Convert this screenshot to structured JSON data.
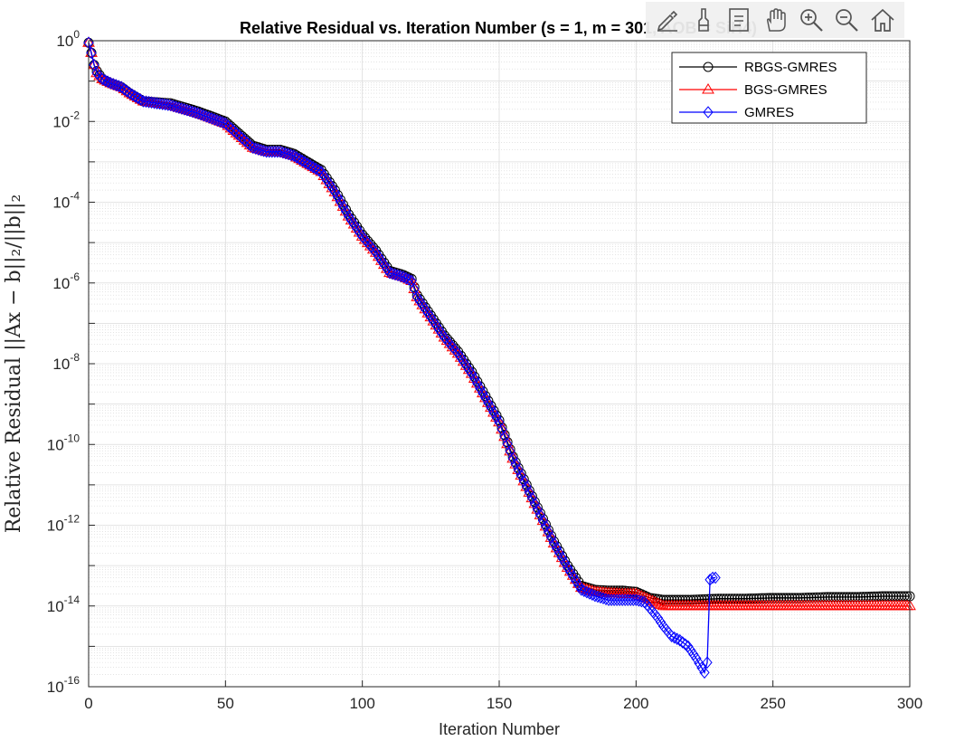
{
  "toolbar": {
    "icons": [
      "edit-icon",
      "brush-icon",
      "datatip-icon",
      "pan-icon",
      "zoom-in-icon",
      "zoom-out-icon",
      "home-icon"
    ]
  },
  "chart_data": {
    "type": "line",
    "title": "Relative Residual vs. Iteration Number (s = 1, m = 301, AOB = SiH4)",
    "xlabel": "Iteration Number",
    "ylabel": "Relative Residual ||Ax − b||₂/||b||₂",
    "yscale": "log",
    "xlim": [
      0,
      300
    ],
    "ylim_exp": [
      -16,
      0
    ],
    "grid": true,
    "minor_grid": true,
    "legend_position": "top-right",
    "xticks": [
      "0",
      "50",
      "100",
      "150",
      "200",
      "250",
      "300"
    ],
    "yticks": [
      {
        "base": "10",
        "exp": "0"
      },
      {
        "base": "10",
        "exp": "-2"
      },
      {
        "base": "10",
        "exp": "-4"
      },
      {
        "base": "10",
        "exp": "-6"
      },
      {
        "base": "10",
        "exp": "-8"
      },
      {
        "base": "10",
        "exp": "-10"
      },
      {
        "base": "10",
        "exp": "-12"
      },
      {
        "base": "10",
        "exp": "-14"
      },
      {
        "base": "10",
        "exp": "-16"
      }
    ],
    "series": [
      {
        "name": "RBGS-GMRES",
        "color": "#000000",
        "marker": "circle",
        "points": [
          [
            0,
            -0.05
          ],
          [
            1,
            -0.3
          ],
          [
            2,
            -0.6
          ],
          [
            3,
            -0.75
          ],
          [
            5,
            -0.95
          ],
          [
            8,
            -1.05
          ],
          [
            12,
            -1.15
          ],
          [
            15,
            -1.3
          ],
          [
            20,
            -1.5
          ],
          [
            30,
            -1.55
          ],
          [
            40,
            -1.75
          ],
          [
            50,
            -2.0
          ],
          [
            55,
            -2.3
          ],
          [
            60,
            -2.6
          ],
          [
            65,
            -2.7
          ],
          [
            70,
            -2.7
          ],
          [
            75,
            -2.8
          ],
          [
            80,
            -3.0
          ],
          [
            85,
            -3.2
          ],
          [
            90,
            -3.7
          ],
          [
            95,
            -4.3
          ],
          [
            100,
            -4.8
          ],
          [
            105,
            -5.2
          ],
          [
            110,
            -5.7
          ],
          [
            115,
            -5.8
          ],
          [
            118,
            -5.9
          ],
          [
            120,
            -6.3
          ],
          [
            125,
            -6.8
          ],
          [
            130,
            -7.3
          ],
          [
            135,
            -7.7
          ],
          [
            140,
            -8.2
          ],
          [
            145,
            -8.8
          ],
          [
            150,
            -9.4
          ],
          [
            155,
            -10.3
          ],
          [
            160,
            -11.0
          ],
          [
            165,
            -11.7
          ],
          [
            170,
            -12.4
          ],
          [
            175,
            -13.0
          ],
          [
            180,
            -13.5
          ],
          [
            185,
            -13.6
          ],
          [
            190,
            -13.62
          ],
          [
            195,
            -13.62
          ],
          [
            200,
            -13.65
          ],
          [
            205,
            -13.8
          ],
          [
            210,
            -13.85
          ],
          [
            220,
            -13.85
          ],
          [
            230,
            -13.82
          ],
          [
            240,
            -13.82
          ],
          [
            250,
            -13.8
          ],
          [
            260,
            -13.8
          ],
          [
            270,
            -13.78
          ],
          [
            280,
            -13.78
          ],
          [
            290,
            -13.76
          ],
          [
            300,
            -13.76
          ]
        ]
      },
      {
        "name": "BGS-GMRES",
        "color": "#ff0000",
        "marker": "triangle",
        "points": [
          [
            0,
            -0.05
          ],
          [
            1,
            -0.3
          ],
          [
            2,
            -0.6
          ],
          [
            3,
            -0.8
          ],
          [
            5,
            -0.95
          ],
          [
            8,
            -1.05
          ],
          [
            12,
            -1.15
          ],
          [
            15,
            -1.3
          ],
          [
            20,
            -1.5
          ],
          [
            30,
            -1.6
          ],
          [
            40,
            -1.8
          ],
          [
            50,
            -2.05
          ],
          [
            55,
            -2.35
          ],
          [
            60,
            -2.65
          ],
          [
            65,
            -2.75
          ],
          [
            70,
            -2.75
          ],
          [
            75,
            -2.85
          ],
          [
            80,
            -3.05
          ],
          [
            85,
            -3.25
          ],
          [
            90,
            -3.75
          ],
          [
            95,
            -4.35
          ],
          [
            100,
            -4.85
          ],
          [
            105,
            -5.25
          ],
          [
            110,
            -5.75
          ],
          [
            115,
            -5.85
          ],
          [
            118,
            -5.95
          ],
          [
            120,
            -6.35
          ],
          [
            125,
            -6.85
          ],
          [
            130,
            -7.35
          ],
          [
            135,
            -7.75
          ],
          [
            140,
            -8.25
          ],
          [
            145,
            -8.85
          ],
          [
            150,
            -9.45
          ],
          [
            155,
            -10.35
          ],
          [
            160,
            -11.05
          ],
          [
            165,
            -11.75
          ],
          [
            170,
            -12.45
          ],
          [
            175,
            -13.05
          ],
          [
            180,
            -13.55
          ],
          [
            185,
            -13.65
          ],
          [
            190,
            -13.68
          ],
          [
            195,
            -13.7
          ],
          [
            200,
            -13.7
          ],
          [
            205,
            -13.85
          ],
          [
            210,
            -14.0
          ],
          [
            220,
            -14.0
          ],
          [
            240,
            -14.0
          ],
          [
            260,
            -14.0
          ],
          [
            280,
            -14.0
          ],
          [
            300,
            -14.0
          ]
        ]
      },
      {
        "name": "GMRES",
        "color": "#0000ff",
        "marker": "diamond",
        "points": [
          [
            0,
            -0.05
          ],
          [
            1,
            -0.3
          ],
          [
            2,
            -0.6
          ],
          [
            3,
            -0.8
          ],
          [
            5,
            -0.95
          ],
          [
            8,
            -1.05
          ],
          [
            12,
            -1.15
          ],
          [
            15,
            -1.3
          ],
          [
            20,
            -1.5
          ],
          [
            30,
            -1.6
          ],
          [
            40,
            -1.8
          ],
          [
            50,
            -2.05
          ],
          [
            55,
            -2.35
          ],
          [
            60,
            -2.65
          ],
          [
            65,
            -2.75
          ],
          [
            70,
            -2.75
          ],
          [
            75,
            -2.85
          ],
          [
            80,
            -3.05
          ],
          [
            85,
            -3.25
          ],
          [
            90,
            -3.75
          ],
          [
            95,
            -4.35
          ],
          [
            100,
            -4.85
          ],
          [
            105,
            -5.25
          ],
          [
            110,
            -5.75
          ],
          [
            115,
            -5.85
          ],
          [
            118,
            -5.95
          ],
          [
            120,
            -6.35
          ],
          [
            125,
            -6.85
          ],
          [
            130,
            -7.35
          ],
          [
            135,
            -7.75
          ],
          [
            140,
            -8.25
          ],
          [
            145,
            -8.85
          ],
          [
            150,
            -9.45
          ],
          [
            155,
            -10.35
          ],
          [
            160,
            -11.05
          ],
          [
            165,
            -11.75
          ],
          [
            170,
            -12.45
          ],
          [
            175,
            -13.05
          ],
          [
            180,
            -13.6
          ],
          [
            185,
            -13.75
          ],
          [
            190,
            -13.85
          ],
          [
            195,
            -13.85
          ],
          [
            200,
            -13.85
          ],
          [
            203,
            -13.9
          ],
          [
            205,
            -14.05
          ],
          [
            208,
            -14.3
          ],
          [
            210,
            -14.5
          ],
          [
            213,
            -14.75
          ],
          [
            216,
            -14.85
          ],
          [
            219,
            -15.0
          ],
          [
            222,
            -15.3
          ],
          [
            225,
            -15.65
          ],
          [
            226,
            -15.4
          ],
          [
            227,
            -13.35
          ],
          [
            228,
            -13.3
          ],
          [
            229,
            -13.3
          ]
        ]
      }
    ]
  }
}
